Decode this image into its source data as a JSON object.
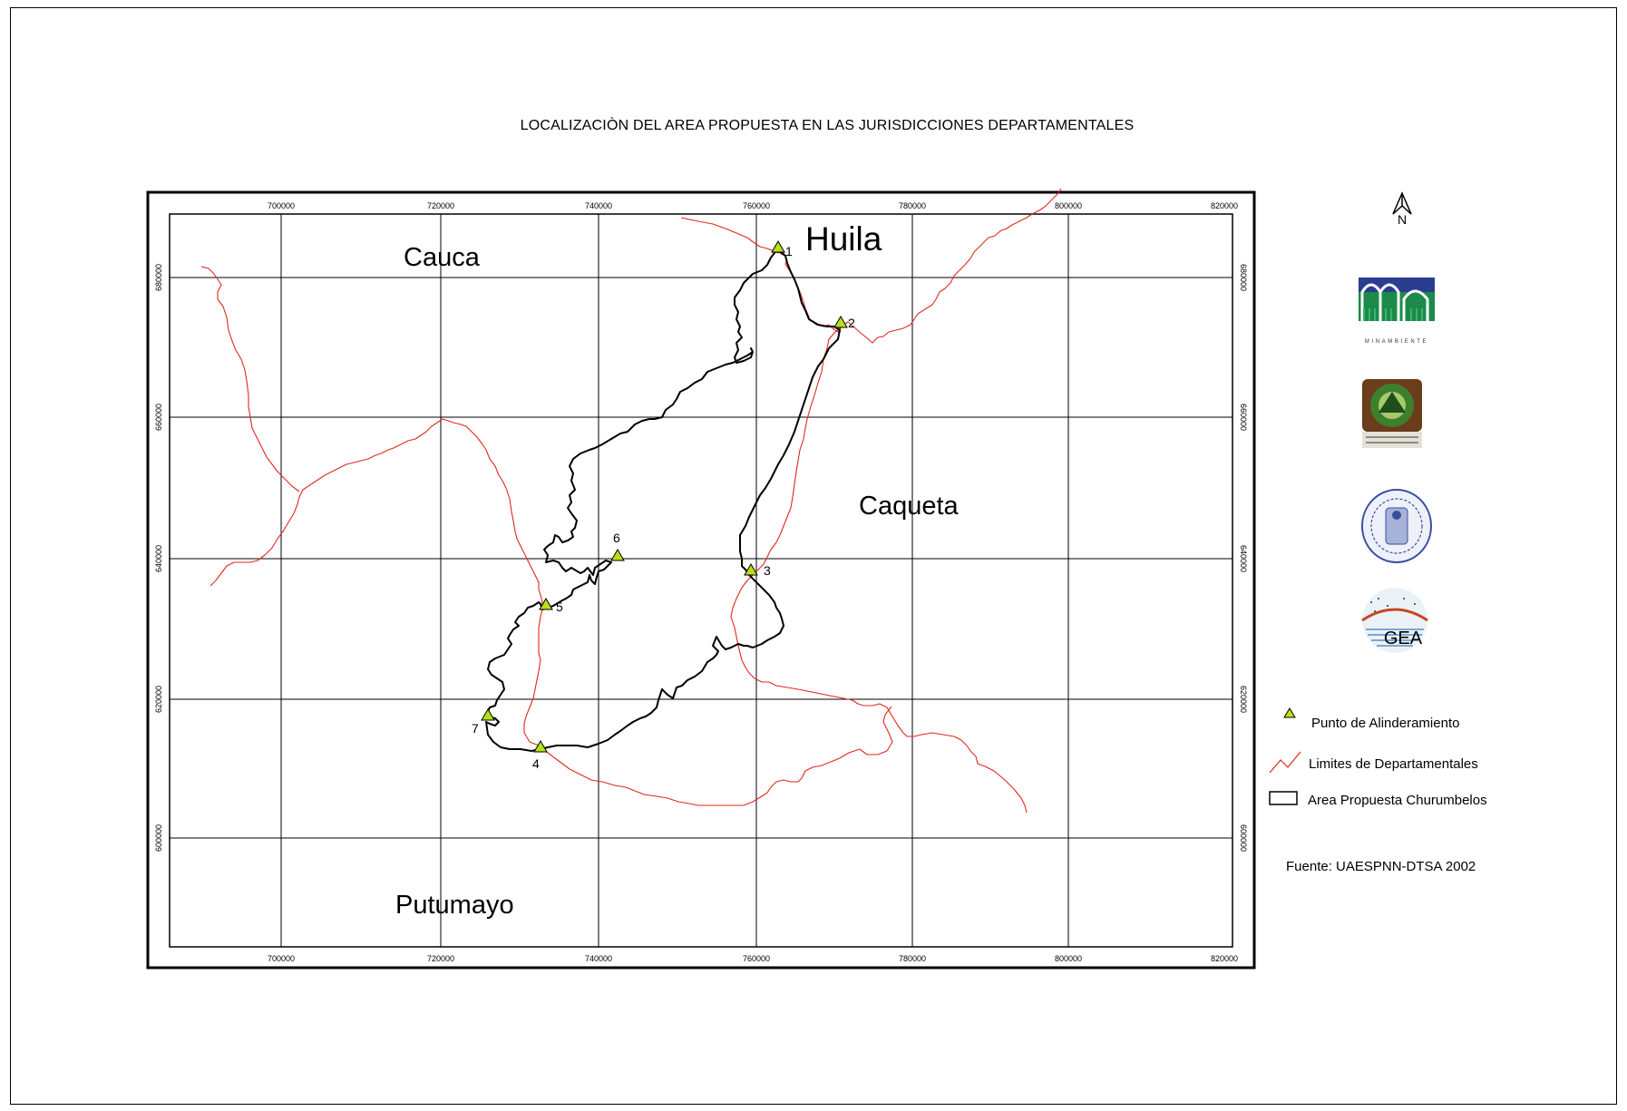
{
  "title": "LOCALIZACIÒN DEL AREA PROPUESTA EN LAS JURISDICCIONES  DEPARTAMENTALES",
  "map": {
    "x_ticks": [
      "700000",
      "720000",
      "740000",
      "760000",
      "780000",
      "800000",
      "820000"
    ],
    "y_ticks": [
      "680000",
      "660000",
      "640000",
      "620000",
      "600000"
    ],
    "regions": [
      {
        "name": "Huila",
        "size": "large"
      },
      {
        "name": "Cauca",
        "size": "medium"
      },
      {
        "name": "Caqueta",
        "size": "medium"
      },
      {
        "name": "Putumayo",
        "size": "medium"
      }
    ],
    "points": [
      "1",
      "2",
      "3",
      "4",
      "5",
      "6",
      "7"
    ],
    "colors": {
      "boundary": "#e0281e",
      "area": "#000000",
      "point_fill": "#b6e01a"
    }
  },
  "north": {
    "label": "N"
  },
  "logos": [
    {
      "name": "minambiente-logo",
      "text": "MINAMBIENTE"
    },
    {
      "name": "university-seal-logo"
    },
    {
      "name": "university-crest-logo"
    },
    {
      "name": "gea-logo",
      "text": "GEA"
    }
  ],
  "legend": {
    "point": "Punto de Alinderamiento",
    "boundary": "Limites  de Departamentales",
    "area": "Area  Propuesta  Churumbelos"
  },
  "source": "Fuente: UAESPNN-DTSA 2002"
}
